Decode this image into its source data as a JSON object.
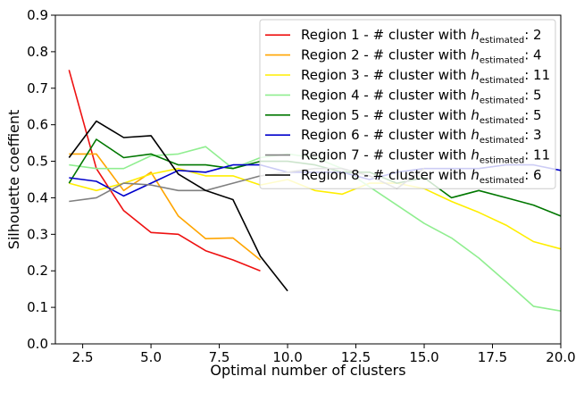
{
  "chart_data": {
    "type": "line",
    "title": "",
    "xlabel": "Optimal number of clusters",
    "ylabel": "Silhouette coeffient",
    "xlim": [
      1.5,
      20.0
    ],
    "ylim": [
      0.0,
      0.9
    ],
    "xticks": [
      2.5,
      5.0,
      7.5,
      10.0,
      12.5,
      15.0,
      17.5,
      20.0
    ],
    "xtick_labels": [
      "2.5",
      "5.0",
      "7.5",
      "10.0",
      "12.5",
      "15.0",
      "17.5",
      "20.0"
    ],
    "yticks": [
      0.0,
      0.1,
      0.2,
      0.3,
      0.4,
      0.5,
      0.6,
      0.7,
      0.8,
      0.9
    ],
    "ytick_labels": [
      "0.0",
      "0.1",
      "0.2",
      "0.3",
      "0.4",
      "0.5",
      "0.6",
      "0.7",
      "0.8",
      "0.9"
    ],
    "grid": false,
    "legend_position": "top-right",
    "series": [
      {
        "prefix": "Region 1 - # cluster with ",
        "h": "h",
        "sub": "estimated",
        "value": ": 2",
        "color": "#ee1111",
        "x": [
          2,
          3,
          4,
          5,
          6,
          7,
          8,
          9
        ],
        "y": [
          0.75,
          0.48,
          0.365,
          0.305,
          0.3,
          0.255,
          0.23,
          0.2
        ]
      },
      {
        "prefix": "Region 2 - # cluster with ",
        "h": "h",
        "sub": "estimated",
        "value": ": 4",
        "color": "#ffa500",
        "x": [
          2,
          3,
          4,
          5,
          6,
          7,
          8,
          9
        ],
        "y": [
          0.52,
          0.52,
          0.42,
          0.47,
          0.35,
          0.288,
          0.29,
          0.23
        ]
      },
      {
        "prefix": "Region 3 - # cluster with ",
        "h": "h",
        "sub": "estimated",
        "value": ": 11",
        "color": "#ffee00",
        "x": [
          2,
          3,
          4,
          5,
          6,
          7,
          8,
          9,
          10,
          11,
          12,
          13,
          14,
          15,
          16,
          17,
          18,
          19,
          20
        ],
        "y": [
          0.44,
          0.42,
          0.44,
          0.465,
          0.48,
          0.46,
          0.46,
          0.435,
          0.45,
          0.42,
          0.41,
          0.44,
          0.44,
          0.425,
          0.39,
          0.36,
          0.325,
          0.28,
          0.26
        ]
      },
      {
        "prefix": "Region 4 - # cluster with ",
        "h": "h",
        "sub": "estimated",
        "value": ": 5",
        "color": "#90ee90",
        "x": [
          2,
          3,
          4,
          5,
          6,
          7,
          8,
          9,
          10,
          11,
          12,
          13,
          14,
          15,
          16,
          17,
          18,
          19,
          20
        ],
        "y": [
          0.49,
          0.48,
          0.48,
          0.515,
          0.52,
          0.54,
          0.48,
          0.51,
          0.52,
          0.51,
          0.48,
          0.43,
          0.38,
          0.33,
          0.29,
          0.235,
          0.17,
          0.103,
          0.09
        ]
      },
      {
        "prefix": "Region 5 - # cluster with ",
        "h": "h",
        "sub": "estimated",
        "value": ": 5",
        "color": "#007700",
        "x": [
          2,
          3,
          4,
          5,
          6,
          7,
          8,
          9,
          10,
          11,
          12,
          13,
          14,
          15,
          16,
          17,
          18,
          19,
          20
        ],
        "y": [
          0.44,
          0.56,
          0.51,
          0.52,
          0.49,
          0.49,
          0.48,
          0.5,
          0.5,
          0.49,
          0.47,
          0.47,
          0.44,
          0.455,
          0.4,
          0.42,
          0.4,
          0.38,
          0.35
        ]
      },
      {
        "prefix": "Region 6 - # cluster with ",
        "h": "h",
        "sub": "estimated",
        "value": ": 3",
        "color": "#0000cc",
        "x": [
          2,
          3,
          4,
          5,
          6,
          7,
          8,
          9,
          10,
          11,
          12,
          13,
          14,
          15,
          16,
          17,
          18,
          19,
          20
        ],
        "y": [
          0.455,
          0.445,
          0.405,
          0.44,
          0.475,
          0.47,
          0.49,
          0.49,
          0.47,
          0.47,
          0.47,
          0.45,
          0.47,
          0.48,
          0.48,
          0.48,
          0.49,
          0.49,
          0.475
        ]
      },
      {
        "prefix": "Region 7 - # cluster with ",
        "h": "h",
        "sub": "estimated",
        "value": ": 11",
        "color": "#808080",
        "x": [
          2,
          3,
          4,
          5,
          6,
          7,
          8,
          9,
          10,
          11,
          12,
          13,
          14,
          15
        ],
        "y": [
          0.39,
          0.4,
          0.44,
          0.435,
          0.42,
          0.42,
          0.44,
          0.46,
          0.47,
          0.48,
          0.48,
          0.46,
          0.425,
          0.48
        ]
      },
      {
        "prefix": "Region 8 - # cluster with ",
        "h": "h",
        "sub": "estimated",
        "value": ": 6",
        "color": "#000000",
        "x": [
          2,
          3,
          4,
          5,
          6,
          7,
          8,
          9,
          10
        ],
        "y": [
          0.51,
          0.61,
          0.565,
          0.57,
          0.465,
          0.42,
          0.395,
          0.24,
          0.145
        ]
      }
    ]
  }
}
